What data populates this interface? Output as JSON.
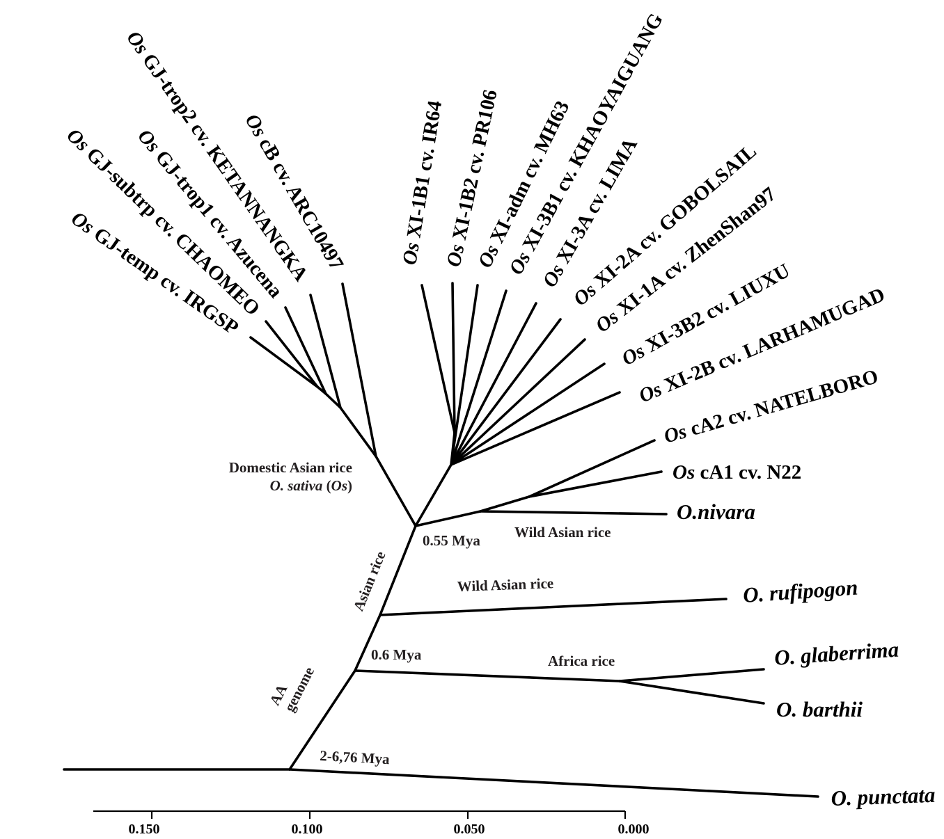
{
  "chart_data": {
    "type": "phylogenetic-tree",
    "title": "",
    "axis": {
      "ticks": [
        "0.150",
        "0.100",
        "0.050",
        "0.000"
      ],
      "range": [
        0.17,
        0.0
      ]
    },
    "leaves": [
      {
        "id": "gj_temp",
        "prefix": "Os",
        "label": " GJ-temp cv. IRGSP"
      },
      {
        "id": "gj_subtrp",
        "prefix": "Os",
        "label": " GJ-subtrp cv. CHAOMEO"
      },
      {
        "id": "gj_trop1",
        "prefix": "Os",
        "label": " GJ-trop1 cv. Azucena"
      },
      {
        "id": "gj_trop2",
        "prefix": "Os",
        "label": " GJ-trop2 cv. KETANNANGKA"
      },
      {
        "id": "cb",
        "prefix": "Os",
        "label": " cB cv. ARC10497"
      },
      {
        "id": "xi1b1",
        "prefix": "Os",
        "label": " XI-1B1 cv. IR64"
      },
      {
        "id": "xi1b2",
        "prefix": "Os",
        "label": " XI-1B2 cv. PR106"
      },
      {
        "id": "xiadm",
        "prefix": "Os",
        "label": " XI-adm cv. MH63"
      },
      {
        "id": "xi3b1",
        "prefix": "Os",
        "label": " XI-3B1 cv. KHAOYAIGUANG"
      },
      {
        "id": "xi3a",
        "prefix": "Os",
        "label": " XI-3A cv. LIMA"
      },
      {
        "id": "xi2a",
        "prefix": "Os",
        "label": " XI-2A cv. GOBOLSAIL"
      },
      {
        "id": "xi1a",
        "prefix": "Os",
        "label": " XI-1A cv. ZhenShan97"
      },
      {
        "id": "xi3b2",
        "prefix": "Os",
        "label": " XI-3B2 cv. LIUXU"
      },
      {
        "id": "xi2b",
        "prefix": "Os",
        "label": " XI-2B cv. LARHAMUGAD"
      },
      {
        "id": "ca2",
        "prefix": "Os",
        "label": " cA2 cv. NATELBORO"
      },
      {
        "id": "ca1",
        "prefix": "Os",
        "label": " cA1 cv. N22"
      },
      {
        "id": "nivara",
        "label": "O.nivara"
      },
      {
        "id": "rufipogon",
        "label": "O. rufipogon"
      },
      {
        "id": "glaberrima",
        "label": "O. glaberrima"
      },
      {
        "id": "barthii",
        "label": "O. barthii"
      },
      {
        "id": "punctata",
        "label": "O. punctata"
      }
    ],
    "annotations": {
      "domestic_line1": "Domestic Asian rice",
      "domestic_line2_a": "O. sativa",
      "domestic_line2_b": " (",
      "domestic_line2_c": "Os",
      "domestic_line2_d": ")",
      "mya_055": "0.55 Mya",
      "wild_asian_1": "Wild Asian rice",
      "asian_rice": "Asian rice",
      "wild_asian_2": "Wild Asian rice",
      "mya_06": "0.6 Mya",
      "africa_rice": "Africa rice",
      "aa_1": "AA",
      "aa_2": "genome",
      "mya_2_676": "2-6,76 Mya"
    }
  }
}
